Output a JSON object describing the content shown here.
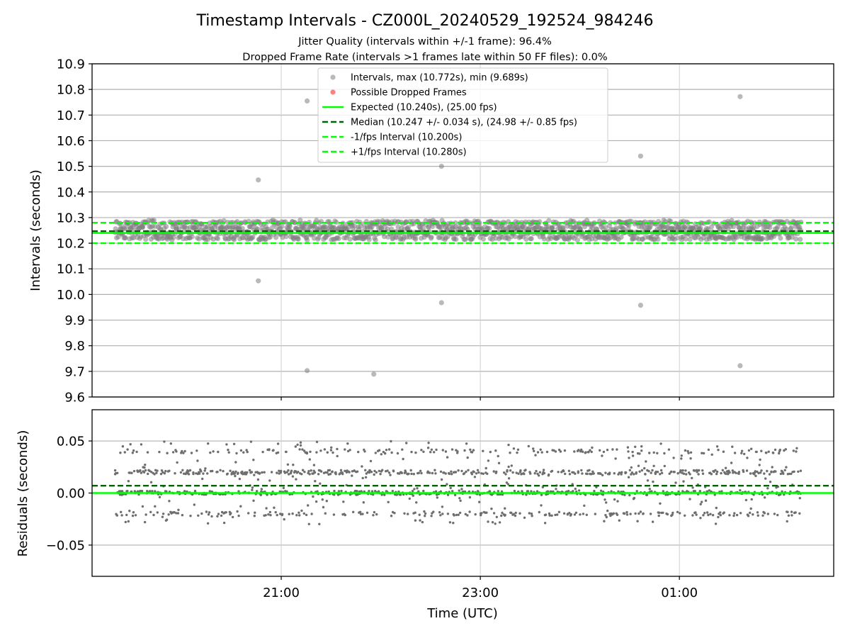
{
  "chart_data": {
    "type": "scatter",
    "title": "Timestamp Intervals - CZ000L_20240529_192524_984246",
    "subtitle_lines": [
      "Jitter Quality (intervals within +/-1 frame): 96.4%",
      "Dropped Frame Rate (intervals >1 frames late within 50 FF files): 0.0%"
    ],
    "xlabel": "Time (UTC)",
    "x_ticks": [
      {
        "value": 21.0,
        "label": "21:00"
      },
      {
        "value": 23.0,
        "label": "23:00"
      },
      {
        "value": 25.0,
        "label": "01:00"
      }
    ],
    "xlim": [
      19.1,
      26.55
    ],
    "data_x_range": [
      19.33,
      26.22
    ],
    "top_panel": {
      "ylabel": "Intervals (seconds)",
      "ylim": [
        9.6,
        10.9
      ],
      "y_ticks": [
        9.6,
        9.7,
        9.8,
        9.9,
        10.0,
        10.1,
        10.2,
        10.3,
        10.4,
        10.5,
        10.6,
        10.7,
        10.8,
        10.9
      ],
      "grid": true,
      "legend_position": "top-center",
      "outliers": [
        {
          "x": 20.77,
          "y": 10.447
        },
        {
          "x": 20.77,
          "y": 10.053
        },
        {
          "x": 21.26,
          "y": 10.755
        },
        {
          "x": 21.26,
          "y": 9.703
        },
        {
          "x": 21.93,
          "y": 9.689
        },
        {
          "x": 22.61,
          "y": 10.5
        },
        {
          "x": 22.61,
          "y": 9.968
        },
        {
          "x": 24.61,
          "y": 10.54
        },
        {
          "x": 24.61,
          "y": 9.958
        },
        {
          "x": 25.61,
          "y": 10.772
        },
        {
          "x": 25.61,
          "y": 9.722
        }
      ],
      "reference_lines": [
        {
          "name": "Expected (10.240s), (25.00 fps)",
          "y": 10.24,
          "color": "#00ff00",
          "style": "solid"
        },
        {
          "name": "Median (10.247 +/- 0.034 s), (24.98 +/- 0.85 fps)",
          "y": 10.247,
          "color": "#006400",
          "style": "dashed"
        },
        {
          "name": "-1/fps Interval (10.200s)",
          "y": 10.2,
          "color": "#00ff00",
          "style": "dashed"
        },
        {
          "name": "+1/fps Interval (10.280s)",
          "y": 10.28,
          "color": "#00ff00",
          "style": "dashed"
        }
      ],
      "series": [
        {
          "name": "Intervals, max (10.772s), min (9.689s)",
          "color": "#808080",
          "marker": "circle",
          "max": 10.772,
          "min": 9.689,
          "typical_band": [
            10.212,
            10.29
          ]
        },
        {
          "name": "Possible Dropped Frames",
          "color": "#ff0000",
          "marker": "circle",
          "count": 0
        }
      ]
    },
    "bottom_panel": {
      "ylabel": "Residuals (seconds)",
      "ylim": [
        -0.08,
        0.08
      ],
      "y_ticks": [
        {
          "value": 0.05,
          "label": "0.05"
        },
        {
          "value": 0.0,
          "label": "0.00"
        },
        {
          "value": -0.05,
          "label": "−0.05"
        }
      ],
      "grid": true,
      "reference_lines": [
        {
          "y": 0.0,
          "color": "#00ff00",
          "style": "solid"
        },
        {
          "y": 0.007,
          "color": "#006400",
          "style": "dashed"
        }
      ],
      "typical_band": [
        -0.033,
        0.054
      ]
    }
  }
}
